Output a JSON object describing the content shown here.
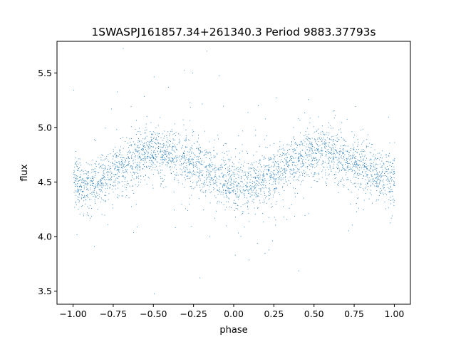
{
  "chart_data": {
    "type": "scatter",
    "title": "1SWASPJ161857.34+261340.3 Period 9883.37793s",
    "xlabel": "phase",
    "ylabel": "flux",
    "xlim": [
      -1.1,
      1.1
    ],
    "ylim": [
      3.38,
      5.79
    ],
    "xticks": [
      -1.0,
      -0.75,
      -0.5,
      -0.25,
      0.0,
      0.25,
      0.5,
      0.75,
      1.0
    ],
    "xtick_labels": [
      "−1.00",
      "−0.75",
      "−0.50",
      "−0.25",
      "0.00",
      "0.25",
      "0.50",
      "0.75",
      "1.00"
    ],
    "yticks": [
      3.5,
      4.0,
      4.5,
      5.0,
      5.5
    ],
    "ytick_labels": [
      "3.5",
      "4.0",
      "4.5",
      "5.0",
      "5.5"
    ],
    "grid": false,
    "marker_color": "#1f77b4",
    "series": [
      {
        "x": [
          -1.0,
          -0.95,
          -0.9,
          -0.85,
          -0.8,
          -0.75,
          -0.7,
          -0.65,
          -0.6,
          -0.55,
          -0.5,
          -0.45,
          -0.4,
          -0.35,
          -0.3,
          -0.25,
          -0.2,
          -0.15,
          -0.1,
          -0.05,
          0.0,
          0.05,
          0.1,
          0.15,
          0.2,
          0.25,
          0.3,
          0.35,
          0.4,
          0.45,
          0.5,
          0.55,
          0.6,
          0.65,
          0.7,
          0.75,
          0.8,
          0.85,
          0.9,
          0.95,
          1.0
        ],
        "y": [
          4.52,
          4.48,
          4.47,
          4.5,
          4.55,
          4.6,
          4.64,
          4.69,
          4.73,
          4.76,
          4.78,
          4.77,
          4.75,
          4.72,
          4.69,
          4.66,
          4.62,
          4.58,
          4.54,
          4.51,
          4.49,
          4.48,
          4.5,
          4.52,
          4.55,
          4.58,
          4.62,
          4.66,
          4.7,
          4.74,
          4.77,
          4.78,
          4.77,
          4.74,
          4.71,
          4.68,
          4.64,
          4.6,
          4.57,
          4.54,
          4.52
        ]
      }
    ]
  }
}
